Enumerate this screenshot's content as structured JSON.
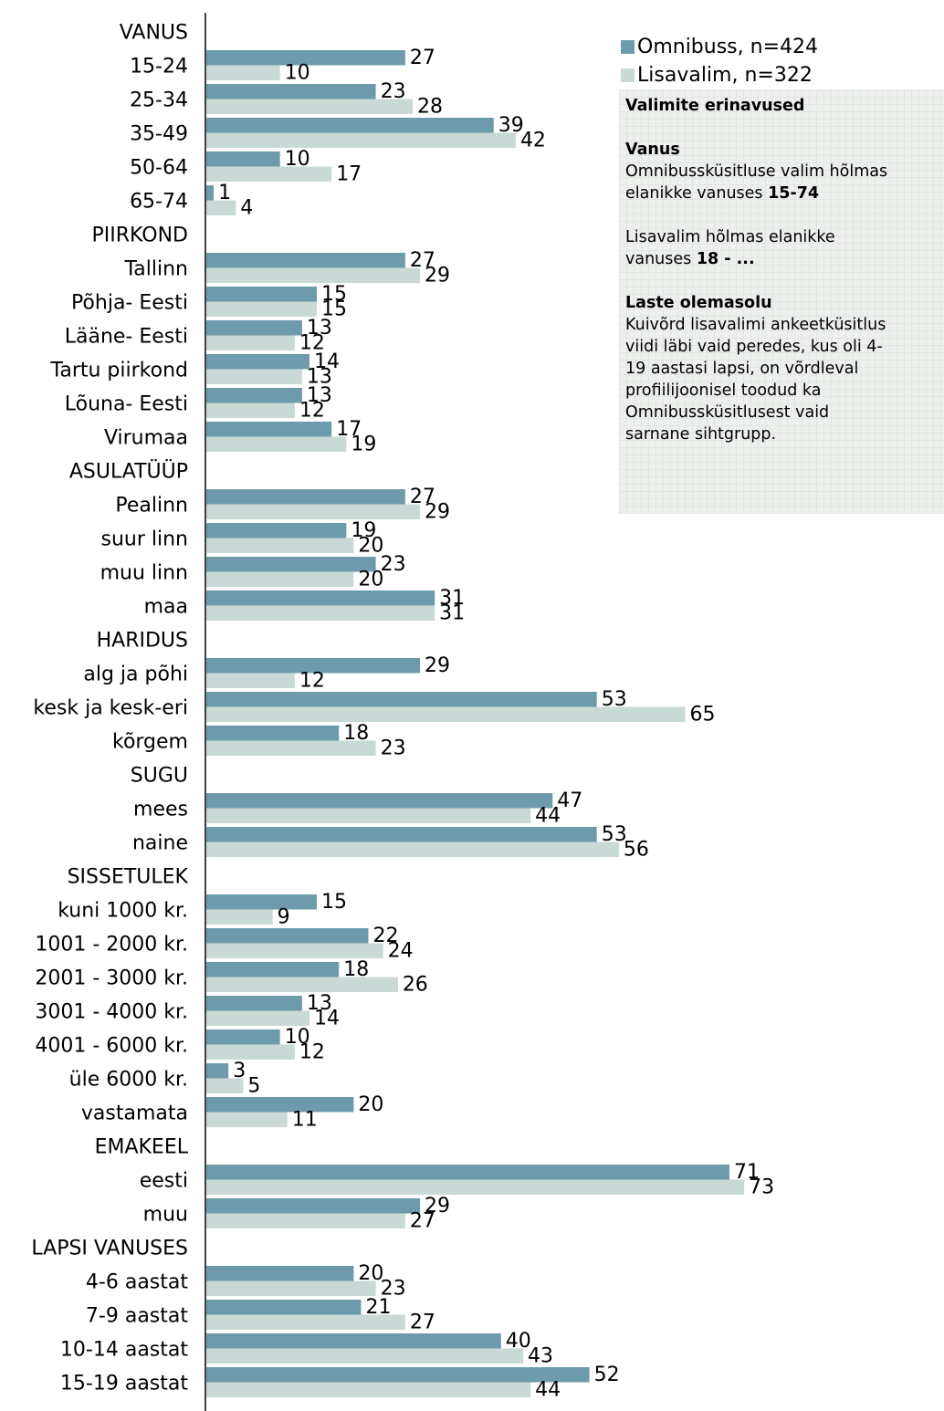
{
  "chart_data": {
    "type": "bar",
    "orientation": "horizontal",
    "grid": false,
    "legend_position": "top-right",
    "series": [
      {
        "name": "Omnibuss, n=424",
        "color": "#6e9bab"
      },
      {
        "name": "Lisavalim, n=322",
        "color": "#c9d9d6"
      }
    ],
    "rows": [
      {
        "label": "VANUS",
        "header": true
      },
      {
        "label": "15-24",
        "values": [
          27,
          10
        ]
      },
      {
        "label": "25-34",
        "values": [
          23,
          28
        ]
      },
      {
        "label": "35-49",
        "values": [
          39,
          42
        ]
      },
      {
        "label": "50-64",
        "values": [
          10,
          17
        ]
      },
      {
        "label": "65-74",
        "values": [
          1,
          4
        ]
      },
      {
        "label": "PIIRKOND",
        "header": true
      },
      {
        "label": "Tallinn",
        "values": [
          27,
          29
        ]
      },
      {
        "label": "Põhja- Eesti",
        "values": [
          15,
          15
        ]
      },
      {
        "label": "Lääne- Eesti",
        "values": [
          13,
          12
        ]
      },
      {
        "label": "Tartu piirkond",
        "values": [
          14,
          13
        ]
      },
      {
        "label": "Lõuna- Eesti",
        "values": [
          13,
          12
        ]
      },
      {
        "label": "Virumaa",
        "values": [
          17,
          19
        ]
      },
      {
        "label": "ASULATÜÜP",
        "header": true
      },
      {
        "label": "Pealinn",
        "values": [
          27,
          29
        ]
      },
      {
        "label": "suur linn",
        "values": [
          19,
          20
        ]
      },
      {
        "label": "muu linn",
        "values": [
          23,
          20
        ]
      },
      {
        "label": "maa",
        "values": [
          31,
          31
        ]
      },
      {
        "label": "HARIDUS",
        "header": true
      },
      {
        "label": "alg ja põhi",
        "values": [
          29,
          12
        ]
      },
      {
        "label": "kesk ja kesk-eri",
        "values": [
          53,
          65
        ]
      },
      {
        "label": "kõrgem",
        "values": [
          18,
          23
        ]
      },
      {
        "label": "SUGU",
        "header": true
      },
      {
        "label": "mees",
        "values": [
          47,
          44
        ]
      },
      {
        "label": "naine",
        "values": [
          53,
          56
        ]
      },
      {
        "label": "SISSETULEK",
        "header": true
      },
      {
        "label": "kuni 1000 kr.",
        "values": [
          15,
          9
        ]
      },
      {
        "label": "1001 - 2000 kr.",
        "values": [
          22,
          24
        ]
      },
      {
        "label": "2001 - 3000 kr.",
        "values": [
          18,
          26
        ]
      },
      {
        "label": "3001 - 4000 kr.",
        "values": [
          13,
          14
        ]
      },
      {
        "label": "4001 - 6000 kr.",
        "values": [
          10,
          12
        ]
      },
      {
        "label": "üle 6000 kr.",
        "values": [
          3,
          5
        ]
      },
      {
        "label": "vastamata",
        "values": [
          20,
          11
        ]
      },
      {
        "label": "EMAKEEL",
        "header": true
      },
      {
        "label": "eesti",
        "values": [
          71,
          73
        ]
      },
      {
        "label": "muu",
        "values": [
          29,
          27
        ]
      },
      {
        "label": "LAPSI VANUSES",
        "header": true
      },
      {
        "label": "4-6 aastat",
        "values": [
          20,
          23
        ]
      },
      {
        "label": "7-9 aastat",
        "values": [
          21,
          27
        ]
      },
      {
        "label": "10-14 aastat",
        "values": [
          40,
          43
        ]
      },
      {
        "label": "15-19 aastat",
        "values": [
          52,
          44
        ]
      }
    ]
  },
  "note": {
    "title": "Valimite erinavused",
    "vanus_heading": "Vanus",
    "vanus_text_1": "Omnibussküsitluse valim hõlmas",
    "vanus_text_2": "elanikke vanuses",
    "vanus_range": "15-74",
    "lisa_text_1": "Lisavalim hõlmas elanikke",
    "lisa_text_2": "vanuses",
    "lisa_range": "18 - ...",
    "laste_heading": "Laste olemasolu",
    "laste_lines": [
      "Kuivõrd lisavalimi ankeetküsitlus",
      "viidi läbi vaid peredes, kus oli 4-",
      "19 aastasi lapsi, on võrdleval",
      "profiilijoonisel toodud ka",
      "Omnibussküsitlusest vaid",
      "sarnane sihtgrupp."
    ]
  }
}
